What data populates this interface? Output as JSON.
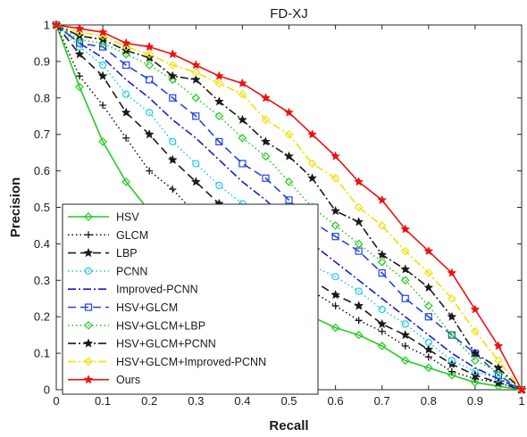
{
  "chart_data": {
    "type": "line",
    "title": "FD-XJ",
    "xlabel": "Recall",
    "ylabel": "Precision",
    "xlim": [
      0,
      1
    ],
    "ylim": [
      0,
      1
    ],
    "xticks": [
      "0",
      "0.1",
      "0.2",
      "0.3",
      "0.4",
      "0.5",
      "0.6",
      "0.7",
      "0.8",
      "0.9",
      "1"
    ],
    "yticks": [
      "0",
      "0.1",
      "0.2",
      "0.3",
      "0.4",
      "0.5",
      "0.6",
      "0.7",
      "0.8",
      "0.9",
      "1"
    ],
    "grid": false,
    "legend_position": "bottom-left",
    "x": [
      0,
      0.05,
      0.1,
      0.15,
      0.2,
      0.25,
      0.3,
      0.35,
      0.4,
      0.45,
      0.5,
      0.55,
      0.6,
      0.65,
      0.7,
      0.75,
      0.8,
      0.85,
      0.9,
      0.95,
      1
    ],
    "series": [
      {
        "name": "HSV",
        "color": "#22cc22",
        "dash": "solid",
        "marker": "diamond",
        "values": [
          1,
          0.83,
          0.68,
          0.57,
          0.49,
          0.43,
          0.38,
          0.33,
          0.29,
          0.25,
          0.22,
          0.2,
          0.17,
          0.15,
          0.12,
          0.08,
          0.06,
          0.04,
          0.02,
          0.01,
          0
        ]
      },
      {
        "name": "GLCM",
        "color": "#1a1a1a",
        "dash": "dotted",
        "marker": "plus",
        "values": [
          1,
          0.86,
          0.78,
          0.69,
          0.6,
          0.55,
          0.48,
          0.44,
          0.4,
          0.34,
          0.31,
          0.27,
          0.23,
          0.19,
          0.16,
          0.12,
          0.09,
          0.05,
          0.03,
          0.02,
          0
        ]
      },
      {
        "name": "LBP",
        "color": "#1a1a1a",
        "dash": "dashed",
        "marker": "star",
        "values": [
          1,
          0.92,
          0.86,
          0.76,
          0.7,
          0.63,
          0.57,
          0.51,
          0.46,
          0.41,
          0.35,
          0.3,
          0.26,
          0.23,
          0.18,
          0.15,
          0.11,
          0.07,
          0.04,
          0.02,
          0
        ]
      },
      {
        "name": "PCNN",
        "color": "#22c8e8",
        "dash": "dotted",
        "marker": "circle",
        "values": [
          1,
          0.94,
          0.89,
          0.81,
          0.76,
          0.68,
          0.62,
          0.56,
          0.51,
          0.45,
          0.41,
          0.34,
          0.31,
          0.27,
          0.22,
          0.18,
          0.13,
          0.08,
          0.05,
          0.03,
          0
        ]
      },
      {
        "name": "Improved-PCNN",
        "color": "#1a1acc",
        "dash": "dashdot",
        "marker": "none",
        "values": [
          1,
          0.95,
          0.91,
          0.85,
          0.8,
          0.74,
          0.69,
          0.63,
          0.57,
          0.52,
          0.46,
          0.4,
          0.35,
          0.3,
          0.25,
          0.2,
          0.15,
          0.1,
          0.06,
          0.03,
          0
        ]
      },
      {
        "name": "HSV+GLCM",
        "color": "#2244dd",
        "dash": "dashed",
        "marker": "square",
        "values": [
          1,
          0.95,
          0.94,
          0.89,
          0.85,
          0.8,
          0.75,
          0.68,
          0.62,
          0.58,
          0.52,
          0.46,
          0.42,
          0.38,
          0.32,
          0.25,
          0.2,
          0.15,
          0.1,
          0.04,
          0
        ]
      },
      {
        "name": "HSV+GLCM+LBP",
        "color": "#22cc22",
        "dash": "dotted",
        "marker": "diamond",
        "values": [
          1,
          0.96,
          0.95,
          0.92,
          0.89,
          0.85,
          0.8,
          0.75,
          0.69,
          0.64,
          0.57,
          0.5,
          0.45,
          0.4,
          0.35,
          0.3,
          0.23,
          0.15,
          0.08,
          0.05,
          0
        ]
      },
      {
        "name": "HSV+GLCM+PCNN",
        "color": "#1a1a1a",
        "dash": "dashdot",
        "marker": "star",
        "values": [
          1,
          0.97,
          0.96,
          0.93,
          0.91,
          0.86,
          0.85,
          0.79,
          0.74,
          0.68,
          0.64,
          0.58,
          0.49,
          0.46,
          0.37,
          0.33,
          0.28,
          0.2,
          0.1,
          0.06,
          0
        ]
      },
      {
        "name": "HSV+GLCM+Improved-PCNN",
        "color": "#f2e000",
        "dash": "dashdot",
        "marker": "diamond",
        "values": [
          1,
          0.98,
          0.97,
          0.94,
          0.92,
          0.89,
          0.87,
          0.84,
          0.81,
          0.74,
          0.7,
          0.62,
          0.58,
          0.5,
          0.45,
          0.38,
          0.32,
          0.25,
          0.16,
          0.08,
          0
        ]
      },
      {
        "name": "Ours",
        "color": "#ee1111",
        "dash": "solid",
        "marker": "star",
        "values": [
          1,
          0.99,
          0.98,
          0.95,
          0.94,
          0.92,
          0.89,
          0.86,
          0.84,
          0.8,
          0.76,
          0.7,
          0.64,
          0.57,
          0.52,
          0.44,
          0.38,
          0.32,
          0.22,
          0.12,
          0
        ]
      }
    ]
  }
}
